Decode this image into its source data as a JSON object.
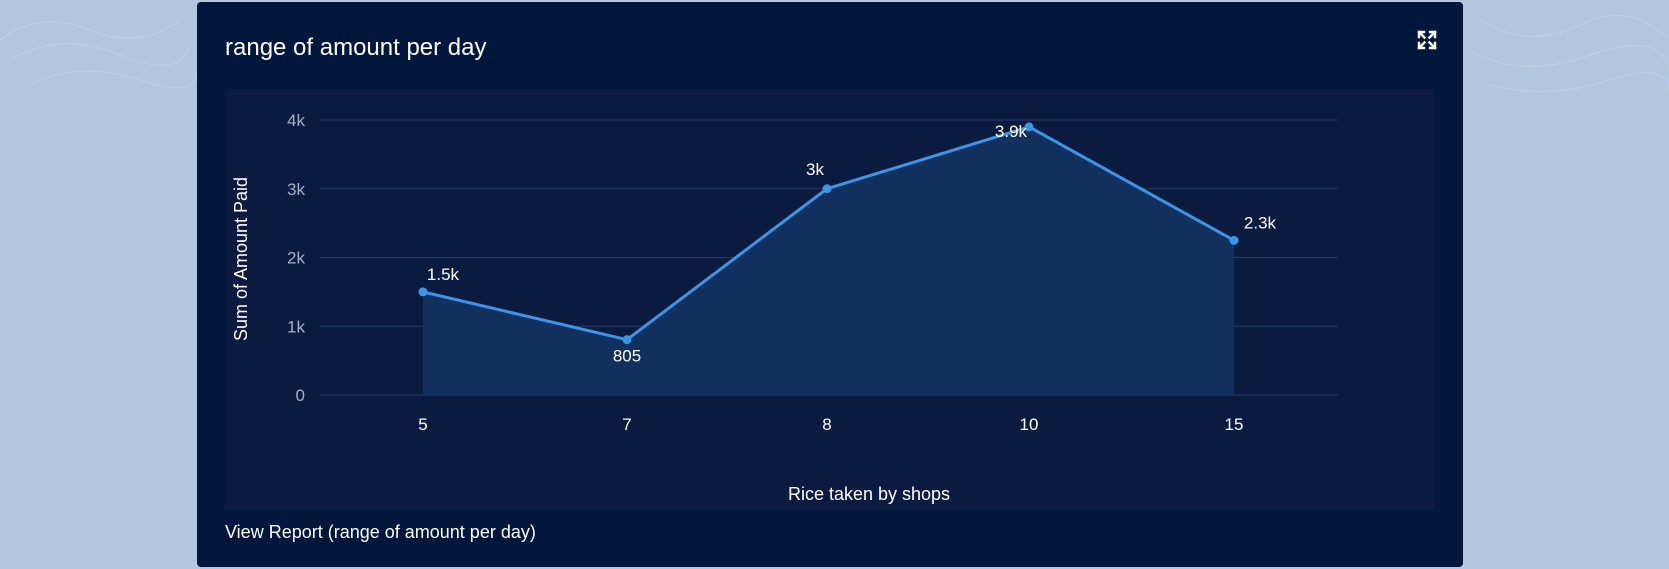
{
  "card": {
    "title": "range of amount per day",
    "report_link": "View Report (range of amount per day)",
    "expand_icon": "expand-icon"
  },
  "colors": {
    "page_bg": "#b2c6de",
    "card_bg": "#00163a",
    "plot_bg": "#0b1b40",
    "line": "#3d95e8",
    "area": "#11305e",
    "grid": "#253a63"
  },
  "chart_data": {
    "type": "area",
    "categories": [
      "5",
      "7",
      "8",
      "10",
      "15"
    ],
    "values": [
      1500,
      805,
      3000,
      3900,
      2250
    ],
    "data_labels": [
      "1.5k",
      "805",
      "3k",
      "3.9k",
      "2.3k"
    ],
    "xlabel": "Rice taken by shops",
    "ylabel": "Sum of Amount Paid",
    "ylim": [
      0,
      4000
    ],
    "yticks": [
      0,
      1000,
      2000,
      3000,
      4000
    ],
    "ytick_labels": [
      "0",
      "1k",
      "2k",
      "3k",
      "4k"
    ],
    "grid": true,
    "legend": "none"
  }
}
